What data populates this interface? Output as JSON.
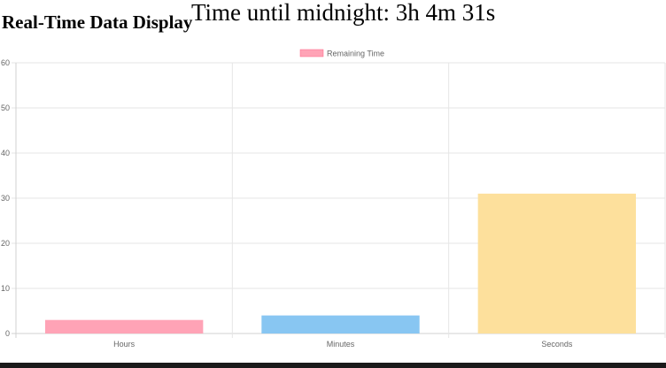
{
  "page": {
    "title": "Real-Time Data Display",
    "countdown": "Time until midnight: 3h 4m 31s"
  },
  "colors": {
    "grid": "#e6e6e6",
    "axis": "#d0d0d0",
    "hours_fill": "#ffa3b6",
    "minutes_fill": "#88c6f2",
    "seconds_fill": "#fde09c",
    "legend_fill": "#ffa3b6",
    "legend_stroke": "#ff6384"
  },
  "chart_data": {
    "type": "bar",
    "categories": [
      "Hours",
      "Minutes",
      "Seconds"
    ],
    "series": [
      {
        "name": "Remaining Time",
        "values": [
          3,
          4,
          31
        ]
      }
    ],
    "ylim": [
      0,
      60
    ],
    "yticks": [
      0,
      10,
      20,
      30,
      40,
      50,
      60
    ],
    "legend_position": "top-center",
    "grid": true
  }
}
